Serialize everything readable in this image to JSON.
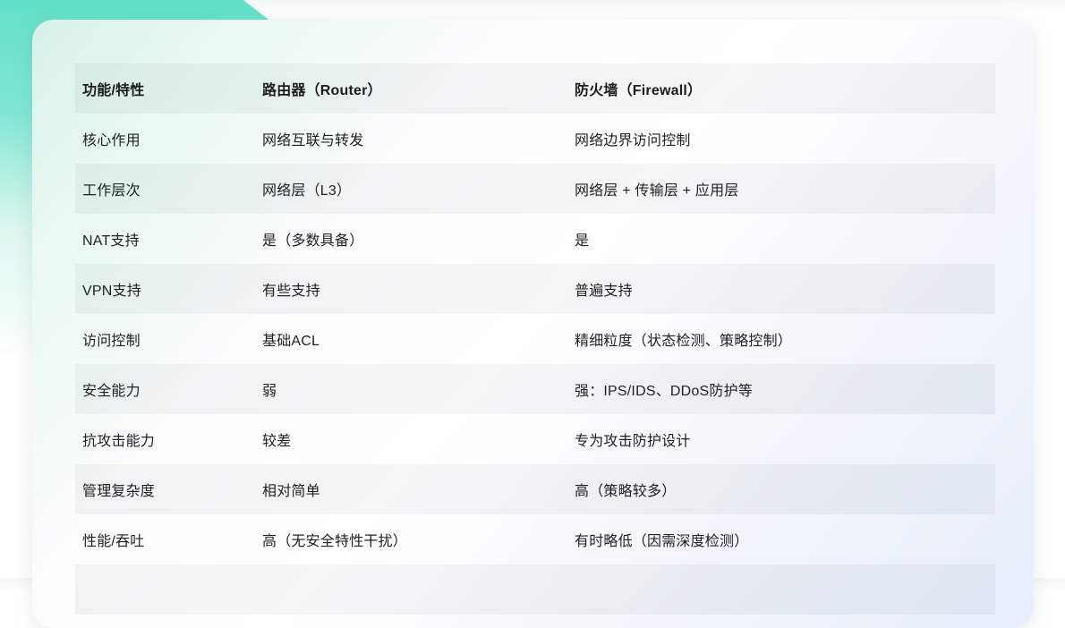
{
  "table": {
    "header": {
      "feature": "功能/特性",
      "router": "路由器（Router）",
      "firewall": "防火墙（Firewall）"
    },
    "rows": [
      {
        "feature": "核心作用",
        "router": "网络互联与转发",
        "firewall": "网络边界访问控制"
      },
      {
        "feature": "工作层次",
        "router": "网络层（L3）",
        "firewall": "网络层 + 传输层 + 应用层"
      },
      {
        "feature": "NAT支持",
        "router": "是（多数具备）",
        "firewall": "是"
      },
      {
        "feature": "VPN支持",
        "router": "有些支持",
        "firewall": "普遍支持"
      },
      {
        "feature": "访问控制",
        "router": "基础ACL",
        "firewall": "精细粒度（状态检测、策略控制）"
      },
      {
        "feature": "安全能力",
        "router": "弱",
        "firewall": "强：IPS/IDS、DDoS防护等"
      },
      {
        "feature": "抗攻击能力",
        "router": "较差",
        "firewall": "专为攻击防护设计"
      },
      {
        "feature": "管理复杂度",
        "router": "相对简单",
        "firewall": "高（策略较多）"
      },
      {
        "feature": "性能/吞吐",
        "router": "高（无安全特性干扰）",
        "firewall": "有时略低（因需深度检测）"
      }
    ]
  },
  "colors": {
    "accent_teal": "#62e0c9",
    "card_mint": "#d7f2e8",
    "card_blue": "#e7eefa",
    "stripe_gray": "#f5f6f6",
    "text": "#202124"
  }
}
